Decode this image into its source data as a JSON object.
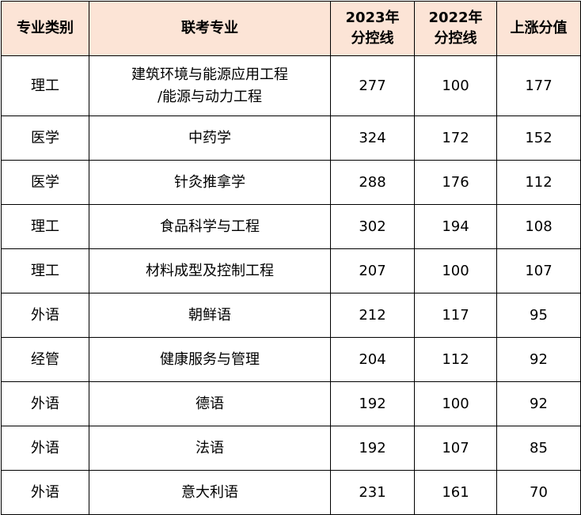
{
  "table": {
    "headers": [
      {
        "line1": "专业类别",
        "line2": ""
      },
      {
        "line1": "联考专业",
        "line2": ""
      },
      {
        "line1": "2023年",
        "line2": "分控线"
      },
      {
        "line1": "2022年",
        "line2": "分控线"
      },
      {
        "line1": "上涨分值",
        "line2": ""
      }
    ],
    "rows": [
      {
        "category": "理工",
        "major_line1": "建筑环境与能源应用工程",
        "major_line2": "/能源与动力工程",
        "score_2023": "277",
        "score_2022": "100",
        "increase": "177"
      },
      {
        "category": "医学",
        "major_line1": "中药学",
        "major_line2": "",
        "score_2023": "324",
        "score_2022": "172",
        "increase": "152"
      },
      {
        "category": "医学",
        "major_line1": "针灸推拿学",
        "major_line2": "",
        "score_2023": "288",
        "score_2022": "176",
        "increase": "112"
      },
      {
        "category": "理工",
        "major_line1": "食品科学与工程",
        "major_line2": "",
        "score_2023": "302",
        "score_2022": "194",
        "increase": "108"
      },
      {
        "category": "理工",
        "major_line1": "材料成型及控制工程",
        "major_line2": "",
        "score_2023": "207",
        "score_2022": "100",
        "increase": "107"
      },
      {
        "category": "外语",
        "major_line1": "朝鲜语",
        "major_line2": "",
        "score_2023": "212",
        "score_2022": "117",
        "increase": "95"
      },
      {
        "category": "经管",
        "major_line1": "健康服务与管理",
        "major_line2": "",
        "score_2023": "204",
        "score_2022": "112",
        "increase": "92"
      },
      {
        "category": "外语",
        "major_line1": "德语",
        "major_line2": "",
        "score_2023": "192",
        "score_2022": "100",
        "increase": "92"
      },
      {
        "category": "外语",
        "major_line1": "法语",
        "major_line2": "",
        "score_2023": "192",
        "score_2022": "107",
        "increase": "85"
      },
      {
        "category": "外语",
        "major_line1": "意大利语",
        "major_line2": "",
        "score_2023": "231",
        "score_2022": "161",
        "increase": "70"
      }
    ]
  }
}
